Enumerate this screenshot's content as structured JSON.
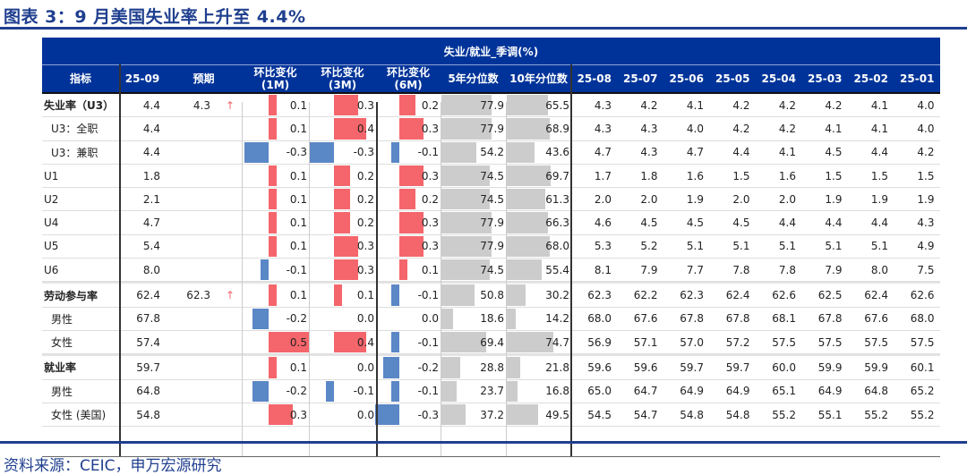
{
  "title": "图表 3：9 月美国失业率上升至 4.4%",
  "source": "资料来源：CEIC，申万宏源研究",
  "table": {
    "group_header": "失业/就业_季调(%)",
    "columns": [
      "指标",
      "25-09",
      "预期",
      "环比变化\n(1M)",
      "环比变化\n(3M)",
      "环比变化\n(6M)",
      "5年分位数",
      "10年分位数",
      "25-08",
      "25-07",
      "25-06",
      "25-05",
      "25-04",
      "25-03",
      "25-02",
      "25-01"
    ],
    "colors": {
      "header": "#003399",
      "positive": "#f4666b",
      "negative": "#5a87c6",
      "percentile": "#cccccc",
      "arrow": "#f4666b"
    },
    "arrow_icon": "↑",
    "rows": [
      {
        "label": "失业率（U3）",
        "bold": true,
        "group": true,
        "v": "4.4",
        "exp": "4.3",
        "arrow": true,
        "m1": "0.1",
        "m3": "0.3",
        "m6": "0.2",
        "p5": "77.9",
        "p10": "65.5",
        "hist": [
          "4.3",
          "4.2",
          "4.1",
          "4.2",
          "4.2",
          "4.2",
          "4.1",
          "4.0"
        ]
      },
      {
        "label": "U3：全职",
        "indent": 1,
        "v": "4.4",
        "m1": "0.1",
        "m3": "0.4",
        "m6": "0.3",
        "p5": "77.9",
        "p10": "68.9",
        "hist": [
          "4.3",
          "4.3",
          "4.0",
          "4.2",
          "4.2",
          "4.1",
          "4.1",
          "4.0"
        ]
      },
      {
        "label": "U3：兼职",
        "indent": 1,
        "v": "4.4",
        "m1": "-0.3",
        "m3": "-0.3",
        "m6": "-0.1",
        "p5": "54.2",
        "p10": "43.6",
        "hist": [
          "4.7",
          "4.3",
          "4.7",
          "4.4",
          "4.1",
          "4.5",
          "4.4",
          "4.2"
        ]
      },
      {
        "label": "U1",
        "v": "1.8",
        "m1": "0.1",
        "m3": "0.2",
        "m6": "0.3",
        "p5": "74.5",
        "p10": "69.7",
        "hist": [
          "1.7",
          "1.8",
          "1.6",
          "1.5",
          "1.6",
          "1.5",
          "1.5",
          "1.5"
        ]
      },
      {
        "label": "U2",
        "v": "2.1",
        "m1": "0.1",
        "m3": "0.2",
        "m6": "0.2",
        "p5": "74.5",
        "p10": "61.3",
        "hist": [
          "2.0",
          "2.0",
          "1.9",
          "2.0",
          "2.0",
          "1.9",
          "1.9",
          "1.9"
        ]
      },
      {
        "label": "U4",
        "v": "4.7",
        "m1": "0.1",
        "m3": "0.2",
        "m6": "0.3",
        "p5": "77.9",
        "p10": "66.3",
        "hist": [
          "4.6",
          "4.5",
          "4.5",
          "4.5",
          "4.4",
          "4.4",
          "4.4",
          "4.3"
        ]
      },
      {
        "label": "U5",
        "v": "5.4",
        "m1": "0.1",
        "m3": "0.3",
        "m6": "0.3",
        "p5": "77.9",
        "p10": "68.0",
        "hist": [
          "5.3",
          "5.2",
          "5.1",
          "5.1",
          "5.1",
          "5.1",
          "5.1",
          "4.9"
        ]
      },
      {
        "label": "U6",
        "v": "8.0",
        "m1": "-0.1",
        "m3": "0.3",
        "m6": "0.1",
        "p5": "74.5",
        "p10": "55.4",
        "hist": [
          "8.1",
          "7.9",
          "7.7",
          "7.8",
          "7.8",
          "7.9",
          "8.0",
          "7.5"
        ]
      },
      {
        "label": "劳动参与率",
        "bold": true,
        "group": true,
        "v": "62.4",
        "exp": "62.3",
        "arrow": true,
        "m1": "0.1",
        "m3": "0.1",
        "m6": "-0.1",
        "p5": "50.8",
        "p10": "30.2",
        "hist": [
          "62.3",
          "62.2",
          "62.3",
          "62.4",
          "62.6",
          "62.5",
          "62.4",
          "62.6"
        ]
      },
      {
        "label": "男性",
        "indent": 1,
        "v": "67.8",
        "m1": "-0.2",
        "m3": "0.0",
        "m6": "0.0",
        "p5": "18.6",
        "p10": "14.2",
        "hist": [
          "68.0",
          "67.6",
          "67.8",
          "67.8",
          "68.1",
          "67.8",
          "67.6",
          "68.0"
        ]
      },
      {
        "label": "女性",
        "indent": 1,
        "v": "57.4",
        "m1": "0.5",
        "m3": "0.4",
        "m6": "-0.1",
        "p5": "69.4",
        "p10": "74.7",
        "hist": [
          "56.9",
          "57.1",
          "57.0",
          "57.2",
          "57.5",
          "57.5",
          "57.5",
          "57.5"
        ]
      },
      {
        "label": "就业率",
        "bold": true,
        "group": true,
        "v": "59.7",
        "m1": "0.1",
        "m3": "0.0",
        "m6": "-0.2",
        "p5": "28.8",
        "p10": "21.8",
        "hist": [
          "59.6",
          "59.6",
          "59.7",
          "59.7",
          "60.0",
          "59.9",
          "59.9",
          "60.1"
        ]
      },
      {
        "label": "男性",
        "indent": 1,
        "v": "64.8",
        "m1": "-0.2",
        "m3": "-0.1",
        "m6": "-0.1",
        "p5": "23.7",
        "p10": "16.8",
        "hist": [
          "65.0",
          "64.7",
          "64.9",
          "64.9",
          "65.1",
          "64.9",
          "64.8",
          "65.2"
        ]
      },
      {
        "label": "女性 (美国)",
        "indent": 1,
        "v": "54.8",
        "m1": "0.3",
        "m3": "0.0",
        "m6": "-0.3",
        "p5": "37.2",
        "p10": "49.5",
        "hist": [
          "54.5",
          "54.7",
          "54.8",
          "54.8",
          "55.2",
          "55.1",
          "55.2",
          "55.2"
        ]
      }
    ]
  }
}
